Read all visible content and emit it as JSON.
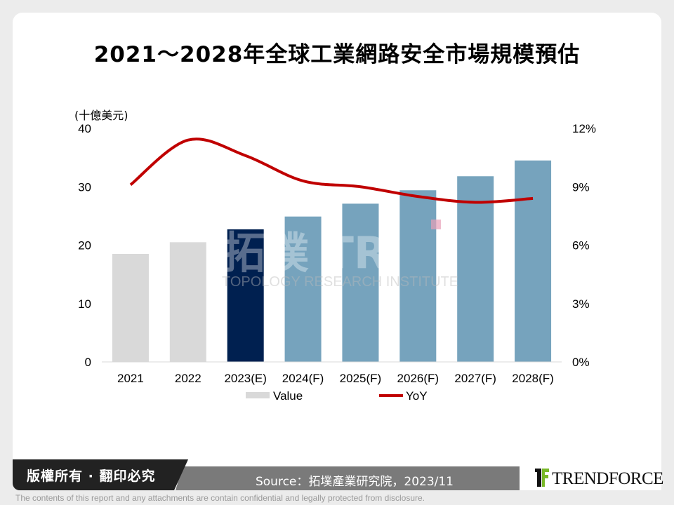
{
  "title": "2021～2028年全球工業網路安全市場規模預估",
  "watermark": {
    "logo_cn": "拓墣",
    "logo_en": "TRI",
    "subtitle": "TOPOLOGY RESEARCH INSTITUTE"
  },
  "chart_data": {
    "type": "bar",
    "unit_label": "(十億美元)",
    "categories": [
      "2021",
      "2022",
      "2023(E)",
      "2024(F)",
      "2025(F)",
      "2026(F)",
      "2027(F)",
      "2028(F)"
    ],
    "series": [
      {
        "name": "Value",
        "type": "bar",
        "axis": "left",
        "values": [
          18.5,
          20.5,
          22.7,
          24.9,
          27.1,
          29.4,
          31.8,
          34.5
        ],
        "colors": [
          "#d9d9d9",
          "#d9d9d9",
          "#002050",
          "#76a3bd",
          "#76a3bd",
          "#76a3bd",
          "#76a3bd",
          "#76a3bd"
        ]
      },
      {
        "name": "YoY",
        "type": "line",
        "axis": "right",
        "values": [
          9.1,
          11.4,
          10.6,
          9.3,
          9.0,
          8.5,
          8.2,
          8.4
        ],
        "color": "#c00000"
      }
    ],
    "y_left": {
      "range": [
        0,
        40
      ],
      "ticks": [
        "0",
        "10",
        "20",
        "30",
        "40"
      ]
    },
    "y_right": {
      "range": [
        0,
        12
      ],
      "ticks": [
        "0%",
        "3%",
        "6%",
        "9%",
        "12%"
      ]
    },
    "grid": false,
    "legend_placement": "bottom"
  },
  "footer": {
    "copyright": "版權所有 · 翻印必究",
    "source": "Source：拓墣產業研究院，2023/11",
    "brand": "TRENDFORCE",
    "disclaimer": "The contents of this report and any attachments are contain confidential and legally protected from disclosure."
  }
}
